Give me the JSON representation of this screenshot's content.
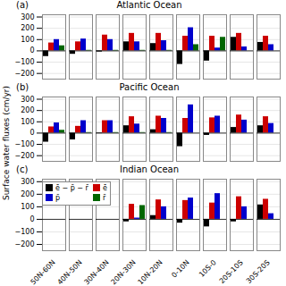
{
  "chart_data": [
    {
      "type": "bar",
      "title": "Atlantic Ocean",
      "annotations": [
        "(a)"
      ],
      "categories": [
        "50N-60N",
        "40N-50N",
        "30N-40N",
        "20N-30N",
        "10N-20N",
        "0-10N",
        "10S-0",
        "20S-10S",
        "30S-20S"
      ],
      "series": [
        {
          "name": "ē − p̄ − r̄",
          "color": "#000000",
          "values": [
            -50,
            -30,
            -10,
            80,
            65,
            -120,
            -90,
            120,
            75
          ]
        },
        {
          "name": "ē",
          "color": "#cc0000",
          "values": [
            70,
            80,
            140,
            155,
            155,
            130,
            130,
            155,
            130
          ]
        },
        {
          "name": "p̄",
          "color": "#0000cc",
          "values": [
            100,
            105,
            100,
            80,
            90,
            205,
            25,
            35,
            55
          ]
        },
        {
          "name": "r̄",
          "color": "#006600",
          "values": [
            45,
            5,
            5,
            5,
            5,
            55,
            120,
            0,
            0
          ]
        }
      ],
      "ylim": [
        -250,
        320
      ],
      "yticks": [
        -200,
        -100,
        0,
        100,
        200,
        300
      ],
      "grid": true,
      "legend": false,
      "tick_labels": "y"
    },
    {
      "type": "bar",
      "title": "Pacific Ocean",
      "annotations": [
        "(b)"
      ],
      "ylabel": "Surface water fluxes (cm/yr)",
      "categories": [
        "50N-60N",
        "40N-50N",
        "30N-40N",
        "20N-30N",
        "10N-20N",
        "0-10N",
        "10S-0",
        "20S-10S",
        "30S-20S"
      ],
      "series": [
        {
          "name": "ē − p̄ − r̄",
          "color": "#000000",
          "values": [
            -80,
            -60,
            -5,
            65,
            30,
            -120,
            -20,
            50,
            65
          ]
        },
        {
          "name": "ē",
          "color": "#cc0000",
          "values": [
            55,
            60,
            110,
            145,
            150,
            130,
            135,
            160,
            145
          ]
        },
        {
          "name": "p̄",
          "color": "#0000cc",
          "values": [
            90,
            110,
            110,
            80,
            130,
            250,
            150,
            115,
            85
          ]
        },
        {
          "name": "r̄",
          "color": "#006600",
          "values": [
            25,
            5,
            5,
            5,
            5,
            0,
            0,
            0,
            0
          ]
        }
      ],
      "ylim": [
        -250,
        320
      ],
      "yticks": [
        -200,
        -100,
        0,
        100,
        200,
        300
      ],
      "grid": true,
      "legend": false,
      "tick_labels": "y"
    },
    {
      "type": "bar",
      "title": "Indian Ocean",
      "annotations": [
        "(c)"
      ],
      "categories": [
        "50N-60N",
        "40N-50N",
        "30N-40N",
        "20N-30N",
        "10N-20N",
        "0-10N",
        "10S-0",
        "20S-10S",
        "30S-20S"
      ],
      "series": [
        {
          "name": "ē − p̄ − r̄",
          "color": "#000000",
          "values": [
            0,
            0,
            0,
            -20,
            30,
            -30,
            -60,
            -20,
            115
          ]
        },
        {
          "name": "ē",
          "color": "#cc0000",
          "values": [
            0,
            0,
            0,
            120,
            155,
            150,
            130,
            180,
            160
          ]
        },
        {
          "name": "p̄",
          "color": "#0000cc",
          "values": [
            0,
            0,
            0,
            10,
            100,
            170,
            205,
            100,
            45
          ]
        },
        {
          "name": "r̄",
          "color": "#006600",
          "values": [
            0,
            0,
            0,
            110,
            0,
            0,
            0,
            0,
            0
          ]
        }
      ],
      "ylim": [
        -250,
        320
      ],
      "yticks": [
        -200,
        -100,
        0,
        100,
        200,
        300
      ],
      "grid": true,
      "legend": "upper left"
    }
  ]
}
